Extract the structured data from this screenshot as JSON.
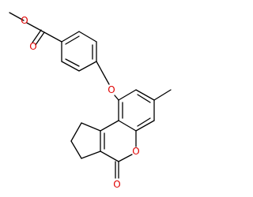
{
  "atoms": [
    {
      "label": "O"
    },
    {
      "label": "O"
    },
    {
      "label": "O"
    },
    {
      "label": "O"
    },
    {
      "label": "O"
    }
  ]
}
